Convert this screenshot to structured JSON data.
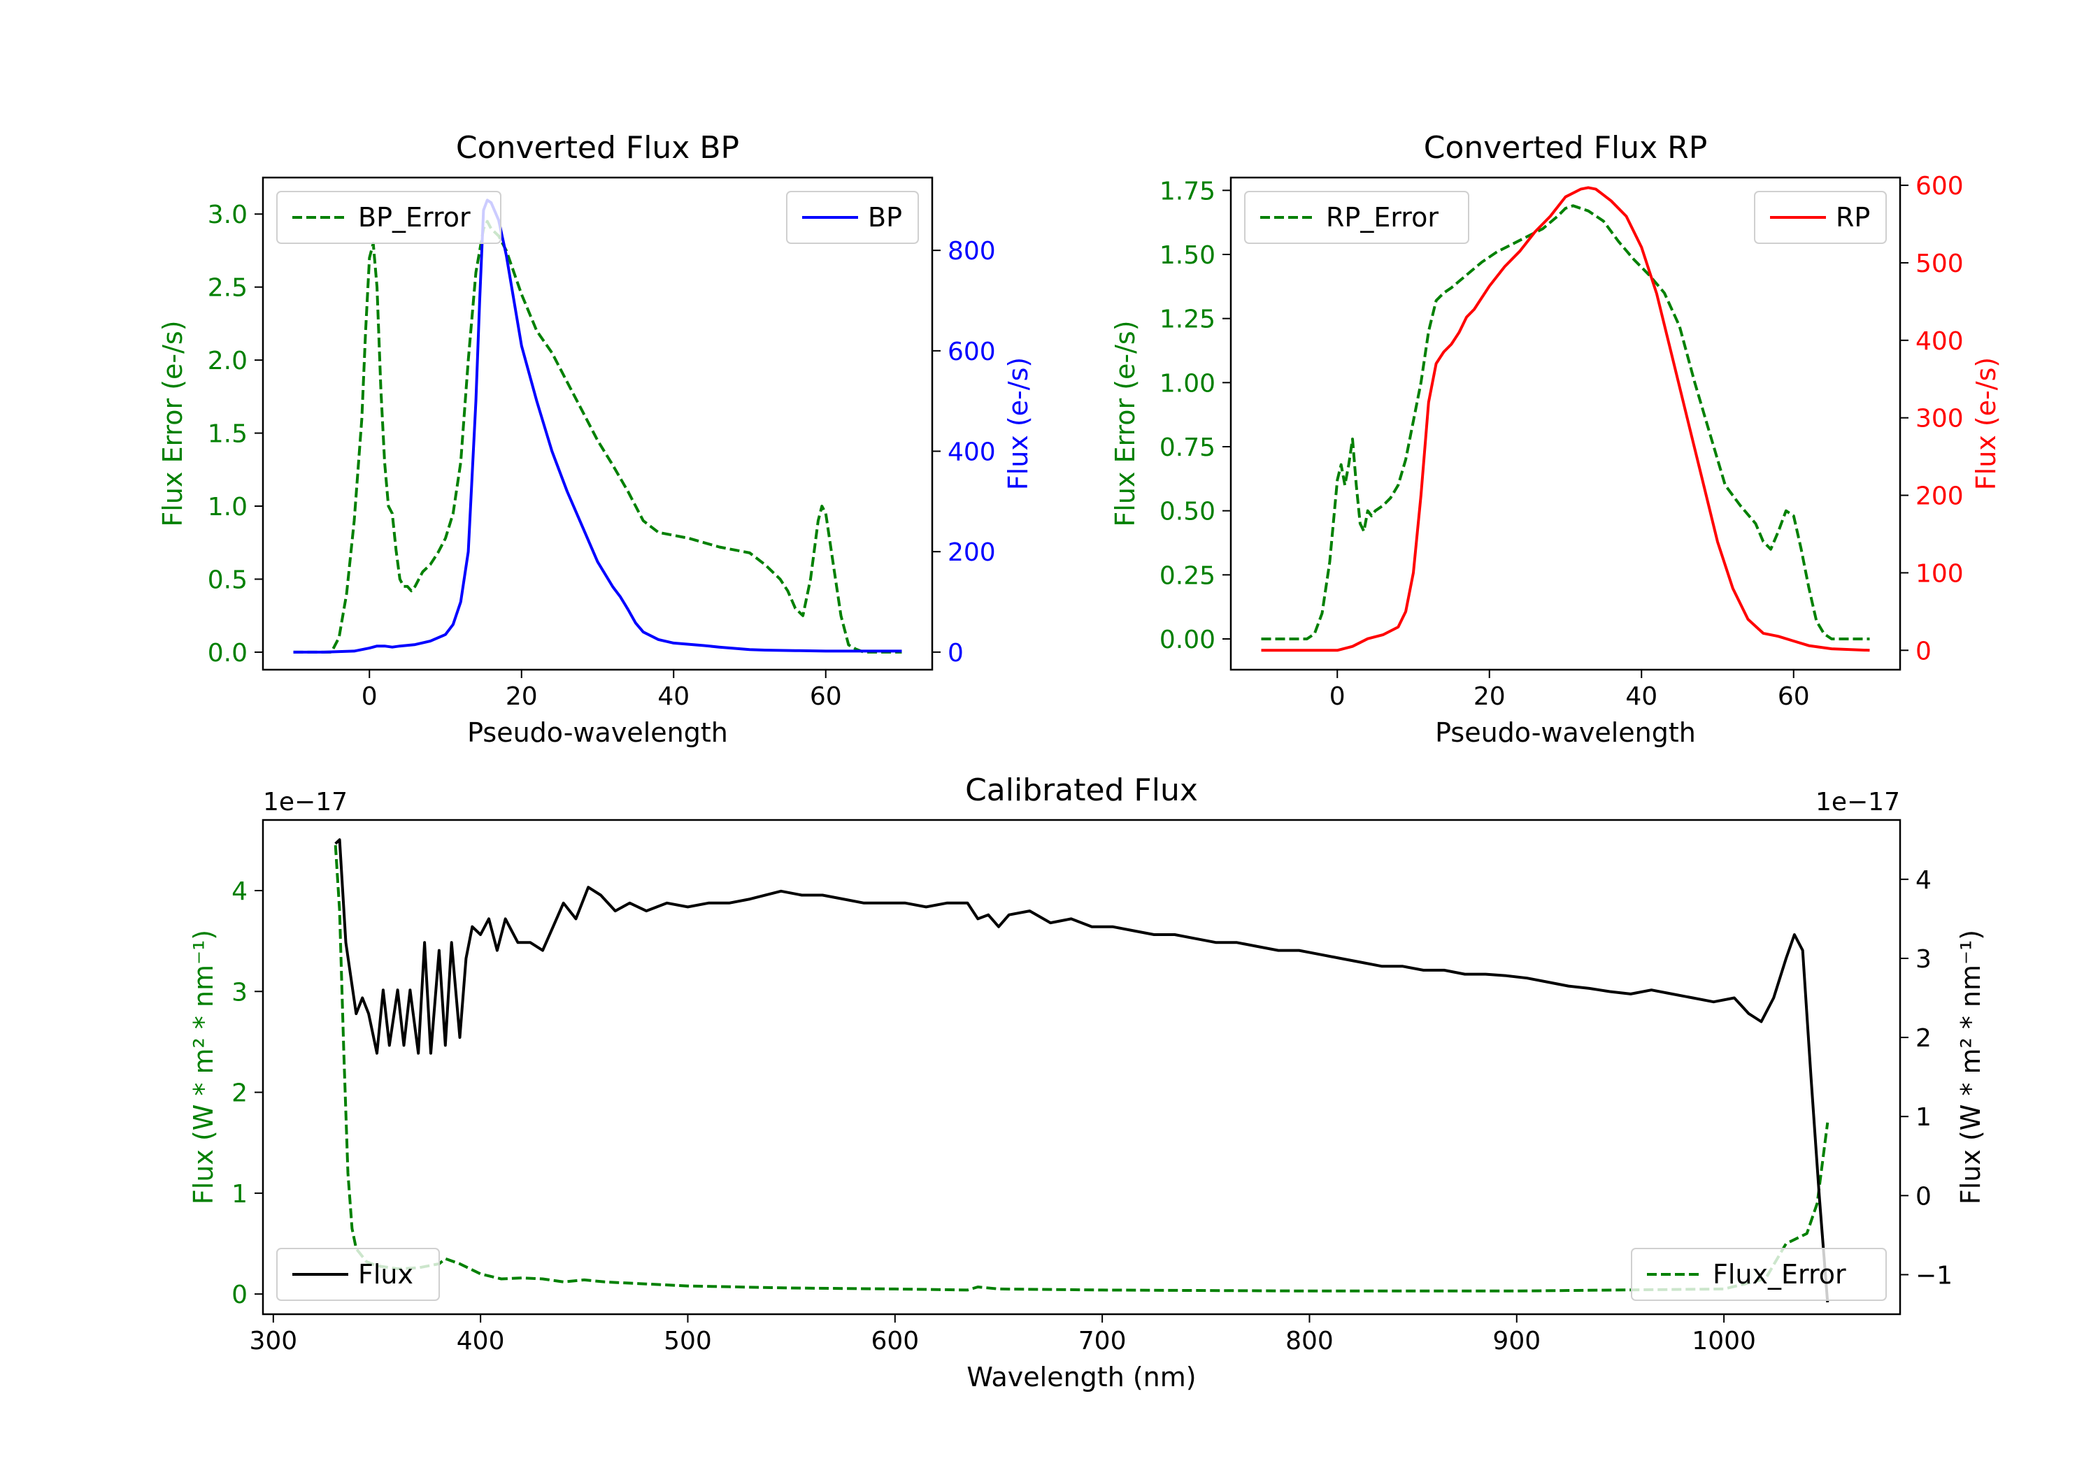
{
  "figure": {
    "background": "#ffffff"
  },
  "chart_data": [
    {
      "id": "bp",
      "type": "line",
      "title": "Converted Flux BP",
      "xlabel": "Pseudo-wavelength",
      "xlim": [
        -14,
        74
      ],
      "xticks": [
        0,
        20,
        40,
        60
      ],
      "left_axis": {
        "label": "Flux Error (e-/s)",
        "color": "#008000",
        "ylim": [
          -0.12,
          3.25
        ],
        "ticks": [
          "0.0",
          "0.5",
          "1.0",
          "1.5",
          "2.0",
          "2.5",
          "3.0"
        ]
      },
      "right_axis": {
        "label": "Flux (e-/s)",
        "color": "#0000ff",
        "ylim": [
          -35,
          945
        ],
        "ticks": [
          "0",
          "200",
          "400",
          "600",
          "800"
        ]
      },
      "series": [
        {
          "name": "BP_Error",
          "axis": "left",
          "color": "#008000",
          "dash": true,
          "x": [
            -10,
            -8,
            -5,
            -4,
            -3,
            -2,
            -1,
            -0.5,
            0,
            0.5,
            1,
            1.5,
            2,
            2.5,
            3,
            3.5,
            4,
            4.5,
            5,
            5.5,
            6,
            7,
            8,
            9,
            10,
            11,
            12,
            13,
            14,
            15,
            15.5,
            16,
            17,
            18,
            19,
            20,
            22,
            24,
            26,
            28,
            30,
            32,
            34,
            36,
            38,
            40,
            42,
            44,
            46,
            48,
            50,
            52,
            54,
            55,
            56,
            57,
            58,
            59,
            59.5,
            60,
            61,
            62,
            63,
            64,
            65,
            66,
            68,
            70
          ],
          "values": [
            0,
            0,
            0,
            0.1,
            0.4,
            0.9,
            1.6,
            2.2,
            2.7,
            2.8,
            2.5,
            1.8,
            1.3,
            1.0,
            0.95,
            0.7,
            0.5,
            0.45,
            0.45,
            0.42,
            0.45,
            0.55,
            0.6,
            0.68,
            0.78,
            0.95,
            1.3,
            2.0,
            2.6,
            2.9,
            2.95,
            2.9,
            2.85,
            2.75,
            2.6,
            2.45,
            2.2,
            2.05,
            1.85,
            1.65,
            1.45,
            1.28,
            1.1,
            0.9,
            0.82,
            0.8,
            0.78,
            0.75,
            0.72,
            0.7,
            0.68,
            0.6,
            0.5,
            0.42,
            0.3,
            0.25,
            0.5,
            0.9,
            1.0,
            0.95,
            0.6,
            0.25,
            0.05,
            0.02,
            0,
            0,
            0,
            0
          ]
        },
        {
          "name": "BP",
          "axis": "right",
          "color": "#0000ff",
          "dash": false,
          "x": [
            -10,
            -6,
            -2,
            0,
            1,
            2,
            3,
            4,
            6,
            8,
            10,
            11,
            12,
            13,
            14,
            14.5,
            15,
            15.5,
            16,
            17,
            18,
            19,
            20,
            22,
            24,
            26,
            28,
            30,
            32,
            33,
            34,
            35,
            36,
            38,
            40,
            44,
            46,
            50,
            52,
            56,
            60,
            65,
            70
          ],
          "values": [
            0,
            0,
            2,
            8,
            12,
            12,
            10,
            12,
            15,
            22,
            35,
            55,
            100,
            200,
            500,
            700,
            880,
            900,
            895,
            860,
            790,
            700,
            610,
            500,
            400,
            320,
            250,
            180,
            130,
            110,
            85,
            58,
            40,
            25,
            18,
            13,
            10,
            5,
            4,
            3,
            2,
            2,
            2
          ]
        }
      ],
      "legends": [
        {
          "series": "BP_Error",
          "label": "BP_Error",
          "location": "upper left"
        },
        {
          "series": "BP",
          "label": "BP",
          "location": "upper right"
        }
      ]
    },
    {
      "id": "rp",
      "type": "line",
      "title": "Converted Flux RP",
      "xlabel": "Pseudo-wavelength",
      "xlim": [
        -14,
        74
      ],
      "xticks": [
        0,
        20,
        40,
        60
      ],
      "left_axis": {
        "label": "Flux Error (e-/s)",
        "color": "#008000",
        "ylim": [
          -0.12,
          1.8
        ],
        "ticks": [
          "0.00",
          "0.25",
          "0.50",
          "0.75",
          "1.00",
          "1.25",
          "1.50",
          "1.75"
        ]
      },
      "right_axis": {
        "label": "Flux (e-/s)",
        "color": "#ff0000",
        "ylim": [
          -25,
          610
        ],
        "ticks": [
          "0",
          "100",
          "200",
          "300",
          "400",
          "500",
          "600"
        ]
      },
      "series": [
        {
          "name": "RP_Error",
          "axis": "left",
          "color": "#008000",
          "dash": true,
          "x": [
            -10,
            -6,
            -4,
            -3,
            -2,
            -1,
            0,
            0.5,
            1,
            1.5,
            2,
            2.5,
            3,
            3.5,
            4,
            4.5,
            5,
            6,
            7,
            8,
            9,
            10,
            11,
            12,
            13,
            14,
            15,
            17,
            19,
            21,
            23,
            25,
            27,
            29,
            30,
            31,
            33,
            35,
            37,
            39,
            41,
            43,
            45,
            47,
            49,
            51,
            53,
            55,
            56,
            57,
            58,
            59,
            60,
            61,
            62,
            63,
            64,
            65,
            67,
            70
          ],
          "values": [
            0,
            0,
            0,
            0.02,
            0.1,
            0.3,
            0.62,
            0.68,
            0.6,
            0.68,
            0.78,
            0.6,
            0.45,
            0.42,
            0.5,
            0.48,
            0.5,
            0.52,
            0.55,
            0.6,
            0.7,
            0.85,
            1.0,
            1.2,
            1.32,
            1.35,
            1.37,
            1.42,
            1.47,
            1.51,
            1.54,
            1.57,
            1.6,
            1.65,
            1.68,
            1.69,
            1.67,
            1.63,
            1.55,
            1.48,
            1.42,
            1.35,
            1.22,
            1.0,
            0.8,
            0.6,
            0.52,
            0.45,
            0.38,
            0.35,
            0.42,
            0.5,
            0.48,
            0.35,
            0.2,
            0.07,
            0.02,
            0,
            0,
            0
          ]
        },
        {
          "name": "RP",
          "axis": "right",
          "color": "#ff0000",
          "dash": false,
          "x": [
            -10,
            -6,
            -2,
            0,
            2,
            4,
            6,
            8,
            9,
            10,
            11,
            12,
            13,
            14,
            15,
            16,
            17,
            18,
            20,
            22,
            24,
            26,
            28,
            30,
            32,
            33,
            34,
            36,
            38,
            40,
            42,
            44,
            46,
            48,
            50,
            52,
            54,
            56,
            58,
            60,
            62,
            65,
            70
          ],
          "values": [
            0,
            0,
            0,
            0,
            5,
            15,
            20,
            30,
            50,
            100,
            200,
            320,
            370,
            385,
            395,
            410,
            430,
            440,
            470,
            495,
            515,
            540,
            560,
            585,
            595,
            597,
            595,
            580,
            560,
            520,
            460,
            380,
            300,
            220,
            140,
            80,
            40,
            22,
            18,
            12,
            6,
            2,
            0
          ]
        }
      ],
      "legends": [
        {
          "series": "RP_Error",
          "label": "RP_Error",
          "location": "upper left"
        },
        {
          "series": "RP",
          "label": "RP",
          "location": "upper right"
        }
      ]
    },
    {
      "id": "cal",
      "type": "line",
      "title": "Calibrated Flux",
      "xlabel": "Wavelength (nm)",
      "xlim": [
        295,
        1085
      ],
      "xticks": [
        300,
        400,
        500,
        600,
        700,
        800,
        900,
        1000
      ],
      "left_axis": {
        "label": "Flux (W * m² * nm⁻¹)",
        "color": "#008000",
        "offset_text": "1e−17",
        "ylim": [
          -0.2,
          4.7
        ],
        "ticks": [
          "0",
          "1",
          "2",
          "3",
          "4"
        ]
      },
      "right_axis": {
        "label": "Flux (W * m² * nm⁻¹)",
        "color": "#000000",
        "offset_text": "1e−17",
        "ylim": [
          -1.5,
          4.75
        ],
        "ticks": [
          "−1",
          "0",
          "1",
          "2",
          "3",
          "4"
        ]
      },
      "series": [
        {
          "name": "Flux_Error",
          "axis": "left",
          "color": "#008000",
          "dash": true,
          "x": [
            330,
            332,
            334,
            336,
            338,
            340,
            345,
            350,
            360,
            370,
            380,
            383,
            390,
            400,
            410,
            420,
            430,
            440,
            450,
            460,
            470,
            480,
            500,
            550,
            600,
            635,
            640,
            650,
            700,
            800,
            900,
            1000,
            1020,
            1030,
            1035,
            1040,
            1045,
            1050
          ],
          "values": [
            4.45,
            3.8,
            2.4,
            1.2,
            0.65,
            0.45,
            0.32,
            0.28,
            0.25,
            0.26,
            0.3,
            0.35,
            0.3,
            0.2,
            0.15,
            0.16,
            0.15,
            0.12,
            0.14,
            0.12,
            0.11,
            0.1,
            0.08,
            0.06,
            0.05,
            0.04,
            0.07,
            0.05,
            0.04,
            0.03,
            0.03,
            0.05,
            0.15,
            0.5,
            0.55,
            0.6,
            0.9,
            1.7
          ]
        },
        {
          "name": "Flux",
          "axis": "right",
          "color": "#000000",
          "dash": false,
          "x": [
            330,
            332,
            335,
            340,
            343,
            346,
            350,
            353,
            356,
            360,
            363,
            366,
            370,
            373,
            376,
            380,
            383,
            386,
            390,
            393,
            396,
            400,
            404,
            408,
            412,
            418,
            424,
            430,
            435,
            440,
            446,
            452,
            458,
            465,
            472,
            480,
            490,
            500,
            510,
            520,
            530,
            545,
            555,
            565,
            575,
            585,
            595,
            605,
            615,
            625,
            635,
            640,
            645,
            650,
            655,
            665,
            675,
            685,
            695,
            705,
            715,
            725,
            735,
            745,
            755,
            765,
            775,
            785,
            795,
            805,
            815,
            825,
            835,
            845,
            855,
            865,
            875,
            885,
            895,
            905,
            915,
            925,
            935,
            945,
            955,
            965,
            975,
            985,
            995,
            1005,
            1012,
            1018,
            1024,
            1030,
            1034,
            1038,
            1042,
            1046,
            1050
          ],
          "values": [
            4.45,
            4.5,
            3.2,
            2.3,
            2.5,
            2.3,
            1.8,
            2.6,
            1.9,
            2.6,
            1.9,
            2.6,
            1.8,
            3.2,
            1.8,
            3.1,
            1.9,
            3.2,
            2.0,
            3.0,
            3.4,
            3.3,
            3.5,
            3.1,
            3.5,
            3.2,
            3.2,
            3.1,
            3.4,
            3.7,
            3.5,
            3.9,
            3.8,
            3.6,
            3.7,
            3.6,
            3.7,
            3.65,
            3.7,
            3.7,
            3.75,
            3.85,
            3.8,
            3.8,
            3.75,
            3.7,
            3.7,
            3.7,
            3.65,
            3.7,
            3.7,
            3.5,
            3.55,
            3.4,
            3.55,
            3.6,
            3.45,
            3.5,
            3.4,
            3.4,
            3.35,
            3.3,
            3.3,
            3.25,
            3.2,
            3.2,
            3.15,
            3.1,
            3.1,
            3.05,
            3.0,
            2.95,
            2.9,
            2.9,
            2.85,
            2.85,
            2.8,
            2.8,
            2.78,
            2.75,
            2.7,
            2.65,
            2.62,
            2.58,
            2.55,
            2.6,
            2.55,
            2.5,
            2.45,
            2.5,
            2.3,
            2.2,
            2.5,
            3.0,
            3.3,
            3.1,
            1.5,
            0.0,
            -1.35
          ]
        }
      ],
      "legends": [
        {
          "series": "Flux",
          "label": "Flux",
          "location": "lower left"
        },
        {
          "series": "Flux_Error",
          "label": "Flux_Error",
          "location": "lower right"
        }
      ]
    }
  ]
}
